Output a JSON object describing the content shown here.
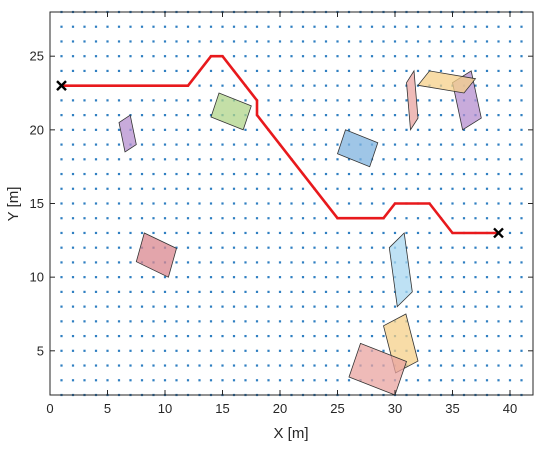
{
  "chart_data": {
    "type": "scatter",
    "xlabel": "X [m]",
    "ylabel": "Y [m]",
    "xlim": [
      0,
      42
    ],
    "ylim": [
      2,
      28
    ],
    "xticks": [
      0,
      5,
      10,
      15,
      20,
      25,
      30,
      35,
      40
    ],
    "yticks": [
      5,
      10,
      15,
      20,
      25
    ],
    "grid_points": {
      "color": "#2f7fc1",
      "x_range": [
        1,
        41
      ],
      "x_step": 1,
      "y_range": [
        2,
        28
      ],
      "y_step": 1
    },
    "path": {
      "color": "#e8191c",
      "points": [
        [
          1,
          23
        ],
        [
          12,
          23
        ],
        [
          14,
          25
        ],
        [
          15,
          25
        ],
        [
          18,
          22
        ],
        [
          18,
          21
        ],
        [
          25,
          14
        ],
        [
          29,
          14
        ],
        [
          30,
          15
        ],
        [
          33,
          15
        ],
        [
          35,
          13
        ],
        [
          39,
          13
        ]
      ],
      "start": [
        1,
        23
      ],
      "goal": [
        39,
        13
      ]
    },
    "obstacles": [
      {
        "color": "#b58fcf",
        "corners": [
          [
            6,
            18.5
          ],
          [
            7.5,
            21
          ]
        ]
      },
      {
        "color": "#b0d48a",
        "corners": [
          [
            14,
            20
          ],
          [
            17.5,
            22.5
          ]
        ]
      },
      {
        "color": "#d9878f",
        "corners": [
          [
            7.5,
            10
          ],
          [
            11,
            13
          ]
        ]
      },
      {
        "color": "#7fb3df",
        "corners": [
          [
            25,
            17.5
          ],
          [
            28.5,
            20
          ]
        ]
      },
      {
        "color": "#e9a4a0",
        "corners": [
          [
            31,
            20
          ],
          [
            32,
            24
          ]
        ]
      },
      {
        "color": "#b58fcf",
        "corners": [
          [
            35,
            20
          ],
          [
            37.5,
            24
          ]
        ]
      },
      {
        "color": "#f5d08a",
        "corners": [
          [
            32,
            22.5
          ],
          [
            37,
            24
          ]
        ]
      },
      {
        "color": "#a8d7f0",
        "corners": [
          [
            29.5,
            8
          ],
          [
            31.5,
            13
          ]
        ]
      },
      {
        "color": "#f5d08a",
        "corners": [
          [
            29,
            3.5
          ],
          [
            32,
            7.5
          ]
        ]
      },
      {
        "color": "#e9a4a0",
        "corners": [
          [
            26,
            2
          ],
          [
            31,
            5.5
          ]
        ]
      }
    ]
  }
}
